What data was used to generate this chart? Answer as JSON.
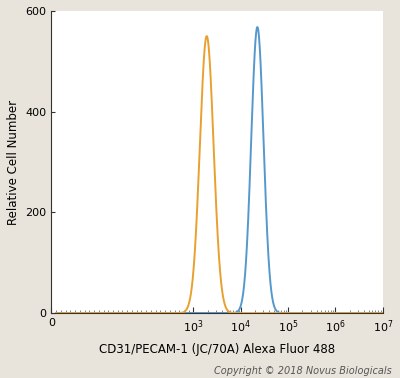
{
  "title": "",
  "xlabel": "CD31/PECAM-1 (JC/70A) Alexa Fluor 488",
  "ylabel": "Relative Cell Number",
  "xlim": [
    0,
    7
  ],
  "ylim": [
    0,
    600
  ],
  "yticks": [
    0,
    200,
    400,
    600
  ],
  "xtick_positions": [
    0,
    3,
    4,
    5,
    6,
    7
  ],
  "xtick_labels": [
    "0",
    "$10^3$",
    "$10^4$",
    "$10^5$",
    "$10^6$",
    "$10^7$"
  ],
  "orange_peak_log": 3.28,
  "orange_peak_height": 550,
  "orange_sigma": 0.145,
  "blue_peak_log": 4.35,
  "blue_peak_height": 568,
  "blue_sigma": 0.13,
  "orange_color": "#E8A030",
  "blue_color": "#5599CC",
  "bg_color": "#FFFFFF",
  "fig_bg_color": "#E8E4DC",
  "copyright_text": "Copyright © 2018 Novus Biologicals",
  "copyright_fontsize": 7.0,
  "axis_fontsize": 8.5,
  "tick_fontsize": 8.0,
  "linewidth": 1.4
}
